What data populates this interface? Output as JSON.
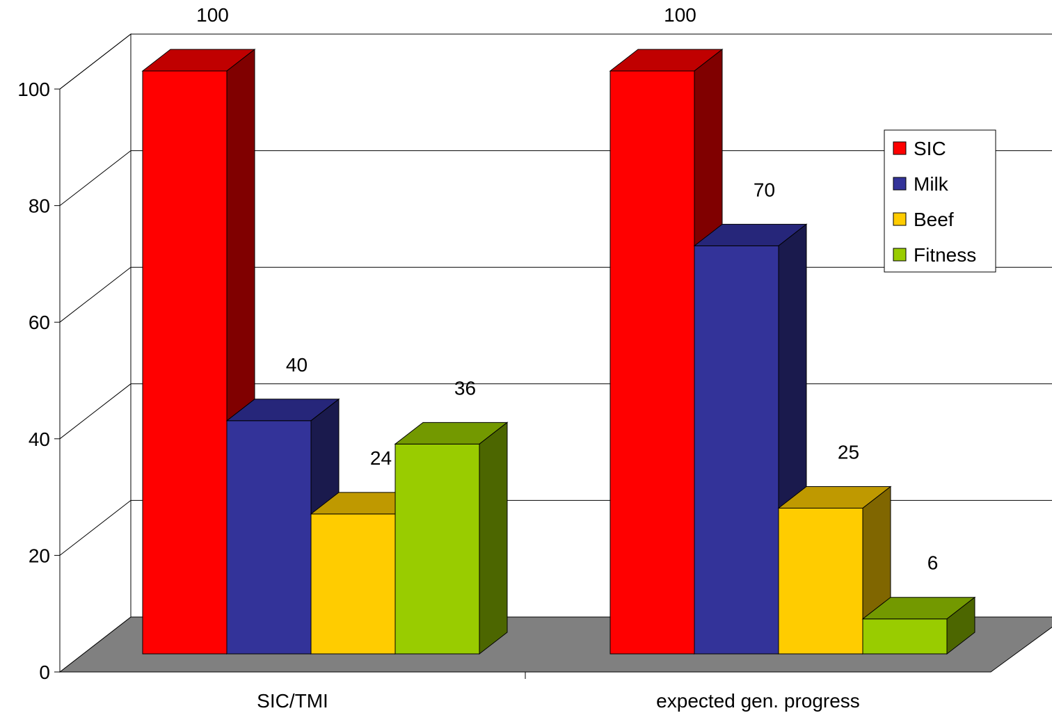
{
  "chart_data": {
    "type": "bar",
    "title": "",
    "xlabel": "",
    "ylabel": "",
    "categories": [
      "SIC/TMI",
      "expected gen. progress"
    ],
    "series": [
      {
        "name": "SIC",
        "values": [
          100,
          100
        ]
      },
      {
        "name": "Milk",
        "values": [
          40,
          70
        ]
      },
      {
        "name": "Beef",
        "values": [
          24,
          25
        ]
      },
      {
        "name": "Fitness",
        "values": [
          36,
          6
        ]
      }
    ],
    "ylim": [
      0,
      100
    ],
    "yticks": [
      0,
      20,
      40,
      60,
      80,
      100
    ],
    "data_labels": true,
    "three_d": true,
    "grid": true,
    "legend_position": "right",
    "colors": {
      "SIC": {
        "front": "#ff0000",
        "side": "#800000",
        "top": "#c00000"
      },
      "Milk": {
        "front": "#333399",
        "side": "#1a1a4d",
        "top": "#26267a"
      },
      "Beef": {
        "front": "#ffcc00",
        "side": "#806600",
        "top": "#bf9900"
      },
      "Fitness": {
        "front": "#99cc00",
        "side": "#4c6600",
        "top": "#739900"
      },
      "floor": "#808080",
      "wall": "#ffffff",
      "grid": "#000000"
    }
  }
}
